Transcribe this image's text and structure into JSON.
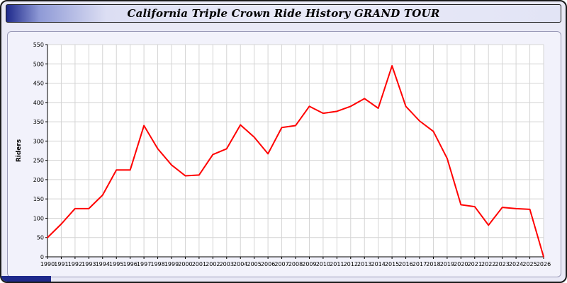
{
  "window": {
    "title": "California Triple Crown Ride History GRAND TOUR"
  },
  "chart_data": {
    "type": "line",
    "title": "California Triple Crown Ride History GRAND TOUR",
    "xlabel": "",
    "ylabel": "Riders",
    "ylim": [
      0,
      550
    ],
    "ytick_step": 50,
    "grid": true,
    "legend_position": "none",
    "line_color": "#ff0000",
    "plot_background": "#ffffff",
    "grid_color": "#d4d4d4",
    "x": [
      1990,
      1991,
      1992,
      1993,
      1994,
      1995,
      1996,
      1997,
      1998,
      1999,
      2000,
      2001,
      2002,
      2003,
      2004,
      2005,
      2006,
      2007,
      2008,
      2009,
      2010,
      2011,
      2012,
      2013,
      2014,
      2015,
      2016,
      2017,
      2018,
      2019,
      2020,
      2021,
      2022,
      2023,
      2024,
      2025,
      2026
    ],
    "series": [
      {
        "name": "Riders",
        "values": [
          50,
          85,
          125,
          125,
          160,
          225,
          225,
          340,
          280,
          238,
          210,
          212,
          265,
          280,
          342,
          310,
          267,
          335,
          340,
          390,
          372,
          377,
          390,
          410,
          385,
          495,
          390,
          352,
          325,
          255,
          135,
          130,
          82,
          128,
          125,
          123,
          0
        ]
      }
    ]
  }
}
